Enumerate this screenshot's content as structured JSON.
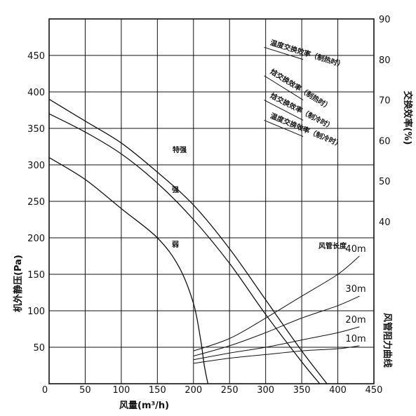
{
  "chart_data": {
    "type": "line",
    "title": "",
    "xlabel": "风量(m³/h)",
    "ylabel": "机外静压(Pa)",
    "y2label_top": "交换效率(%)",
    "y2label_bottom": "风管阻力曲线",
    "xlim": [
      0,
      450
    ],
    "ylim": [
      0,
      500
    ],
    "y2lim": [
      0,
      90
    ],
    "x_ticks": [
      "0",
      "50",
      "100",
      "150",
      "200",
      "250",
      "300",
      "350",
      "400",
      "450"
    ],
    "y_ticks": [
      "50",
      "100",
      "150",
      "200",
      "250",
      "300",
      "350",
      "400",
      "450"
    ],
    "y2_ticks": [
      "40",
      "50",
      "60",
      "70",
      "80",
      "90"
    ],
    "fan_curves": [
      {
        "name": "特强",
        "points": [
          [
            0,
            390
          ],
          [
            50,
            360
          ],
          [
            100,
            330
          ],
          [
            150,
            290
          ],
          [
            200,
            245
          ],
          [
            250,
            185
          ],
          [
            300,
            115
          ],
          [
            350,
            45
          ],
          [
            385,
            0
          ]
        ]
      },
      {
        "name": "强",
        "points": [
          [
            0,
            370
          ],
          [
            50,
            345
          ],
          [
            100,
            315
          ],
          [
            150,
            275
          ],
          [
            200,
            225
          ],
          [
            250,
            165
          ],
          [
            300,
            95
          ],
          [
            350,
            30
          ],
          [
            375,
            0
          ]
        ]
      },
      {
        "name": "弱",
        "points": [
          [
            0,
            310
          ],
          [
            50,
            280
          ],
          [
            100,
            240
          ],
          [
            150,
            200
          ],
          [
            180,
            160
          ],
          [
            200,
            110
          ],
          [
            210,
            60
          ],
          [
            215,
            25
          ],
          [
            220,
            0
          ]
        ]
      }
    ],
    "efficiency_lines": [
      {
        "name": "温度交换效率（制热时）",
        "points": [
          [
            225,
            83
          ],
          [
            350,
            80
          ]
        ]
      },
      {
        "name": "焓交换效率（制热时）",
        "points": [
          [
            225,
            76
          ],
          [
            350,
            70
          ]
        ]
      },
      {
        "name": "焓交换效率（制冷时）",
        "points": [
          [
            225,
            70
          ],
          [
            350,
            65
          ]
        ]
      },
      {
        "name": "温度交换效率（制冷时）",
        "points": [
          [
            225,
            65
          ],
          [
            350,
            61
          ]
        ]
      }
    ],
    "duct_resistance_title": "风管长度",
    "duct_curves": [
      {
        "name": "40m",
        "points": [
          [
            200,
            45
          ],
          [
            250,
            62
          ],
          [
            300,
            90
          ],
          [
            350,
            120
          ],
          [
            400,
            150
          ],
          [
            430,
            175
          ]
        ]
      },
      {
        "name": "30m",
        "points": [
          [
            200,
            38
          ],
          [
            250,
            52
          ],
          [
            300,
            70
          ],
          [
            350,
            90
          ],
          [
            400,
            107
          ],
          [
            430,
            120
          ]
        ]
      },
      {
        "name": "20m",
        "points": [
          [
            200,
            33
          ],
          [
            250,
            42
          ],
          [
            300,
            50
          ],
          [
            350,
            60
          ],
          [
            400,
            70
          ],
          [
            430,
            78
          ]
        ]
      },
      {
        "name": "10m",
        "points": [
          [
            200,
            28
          ],
          [
            250,
            35
          ],
          [
            300,
            40
          ],
          [
            350,
            45
          ],
          [
            400,
            48
          ],
          [
            430,
            52
          ]
        ]
      }
    ]
  }
}
